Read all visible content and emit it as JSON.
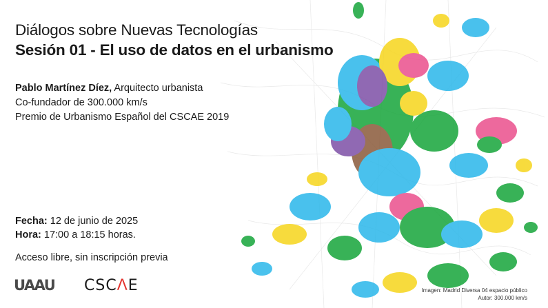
{
  "header": {
    "title": "Diálogos sobre Nuevas Tecnologías",
    "subtitle": "Sesión 01 - El uso de datos en el urbanismo"
  },
  "speaker": {
    "name": "Pablo Martínez Díez,",
    "role": " Arquitecto urbanista",
    "line2": "Co-fundador de 300.000 km/s",
    "line3": "Premio de Urbanismo Español del CSCAE 2019"
  },
  "details": {
    "date_label": "Fecha:",
    "date_value": " 12 de junio de 2025",
    "time_label": "Hora:",
    "time_value": " 17:00 a 18:15 horas."
  },
  "access": "Acceso libre, sin inscripción previa",
  "logos": {
    "uaau": "UAAU",
    "cscae_prefix": "CSC",
    "cscae_accent": "Λ",
    "cscae_suffix": "E"
  },
  "credit": {
    "line1": "Imagen: Madrid Diversa 04 espacio público",
    "line2": "Autor: 300.000 km/s"
  },
  "colors": {
    "blue": "#2ab7ea",
    "green": "#16a53a",
    "yellow": "#f6d51c",
    "pink": "#ea4f8d",
    "purple": "#7d4fa6",
    "brown": "#8a5a3a",
    "accent_red": "#e3342f"
  }
}
